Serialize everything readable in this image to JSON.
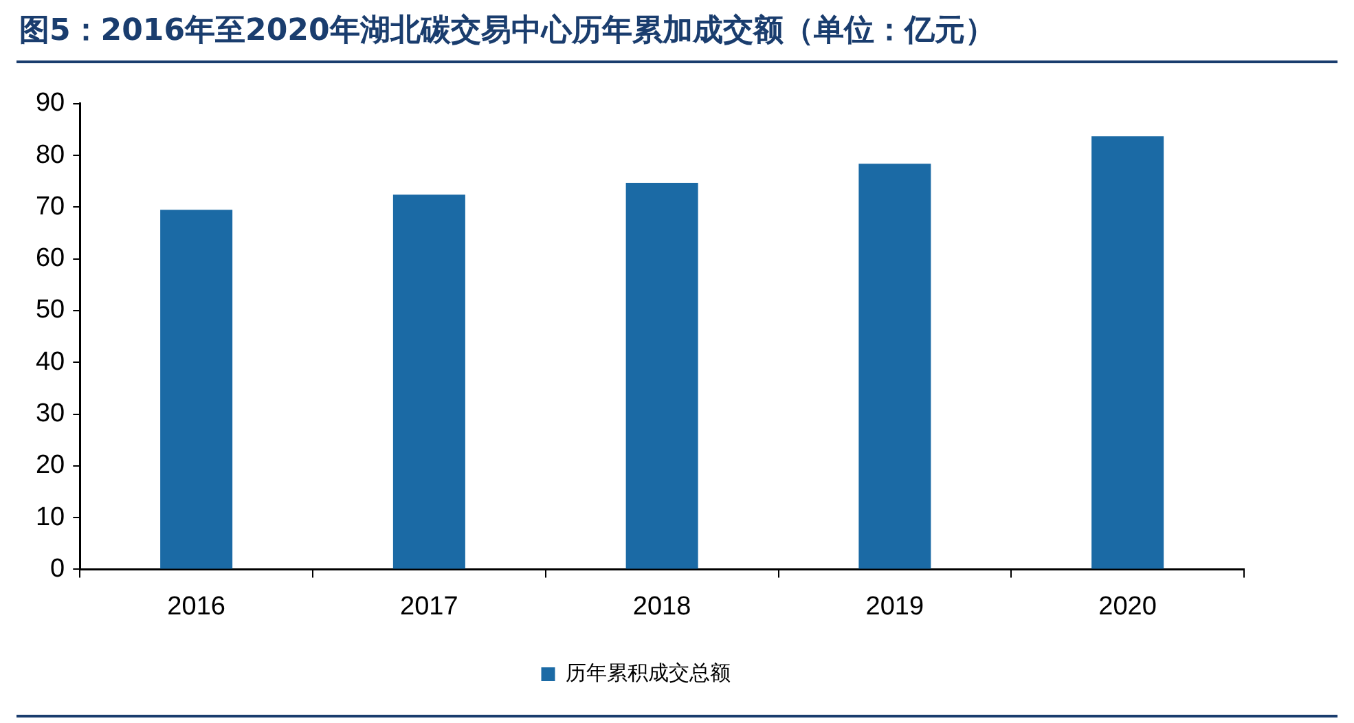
{
  "chart_data": {
    "type": "bar",
    "title": "图5：2016年至2020年湖北碳交易中心历年累加成交额（单位：亿元）",
    "categories": [
      "2016",
      "2017",
      "2018",
      "2019",
      "2020"
    ],
    "series": [
      {
        "name": "历年累积成交总额",
        "color": "#1b6aa5",
        "values": [
          69.5,
          72.4,
          74.7,
          78.4,
          83.7
        ]
      }
    ],
    "ylim": [
      0,
      90
    ],
    "yticks": [
      0,
      10,
      20,
      30,
      40,
      50,
      60,
      70,
      80,
      90
    ],
    "grid": false,
    "legend": "bottom"
  }
}
